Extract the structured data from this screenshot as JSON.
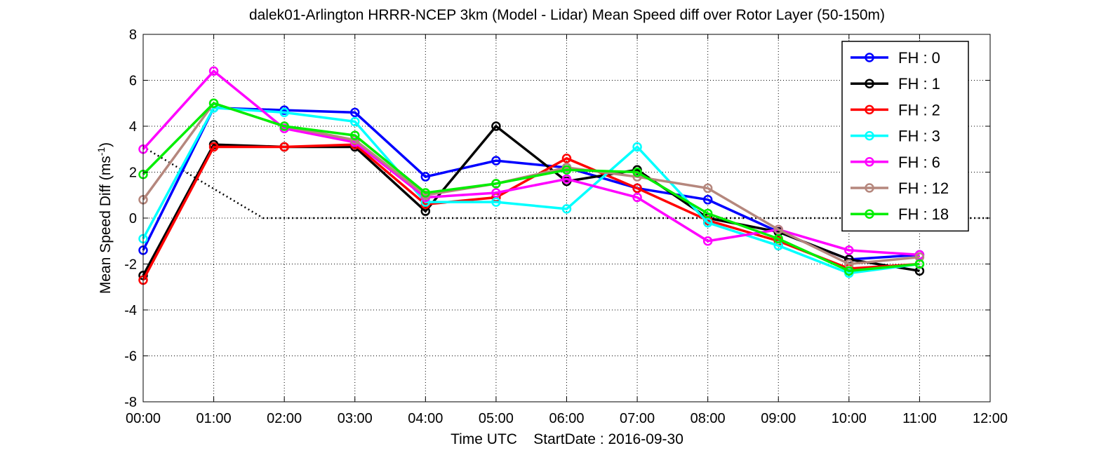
{
  "chart_data": {
    "type": "line",
    "title": "dalek01-Arlington HRRR-NCEP 3km (Model - Lidar) Mean Speed diff over Rotor Layer (50-150m)",
    "xlabel": "Time UTC    StartDate : 2016-09-30",
    "ylabel": "Mean Speed Diff (ms",
    "ylabel_sup": "-1",
    "ylabel_tail": ")",
    "xlim": [
      0,
      12
    ],
    "ylim": [
      -8,
      8
    ],
    "x_ticks": [
      0,
      1,
      2,
      3,
      4,
      5,
      6,
      7,
      8,
      9,
      10,
      11,
      12
    ],
    "x_tick_labels": [
      "00:00",
      "01:00",
      "02:00",
      "03:00",
      "04:00",
      "05:00",
      "06:00",
      "07:00",
      "08:00",
      "09:00",
      "10:00",
      "11:00",
      "12:00"
    ],
    "y_ticks": [
      -8,
      -6,
      -4,
      -2,
      0,
      2,
      4,
      6,
      8
    ],
    "y_tick_labels": [
      "-8",
      "-6",
      "-4",
      "-2",
      "0",
      "2",
      "4",
      "6",
      "8"
    ],
    "grid": true,
    "legend_position": "top-right",
    "reference_line": {
      "style": "dotted",
      "color": "#000000",
      "x": [
        0,
        1.7,
        12
      ],
      "y": [
        3.1,
        0,
        0
      ]
    },
    "series": [
      {
        "name": "FH : 0",
        "color": "#0000ff",
        "x": [
          0,
          1,
          2,
          3,
          4,
          5,
          6,
          7,
          8,
          9,
          10,
          11
        ],
        "y": [
          -1.4,
          4.8,
          4.7,
          4.6,
          1.8,
          2.5,
          2.2,
          1.3,
          0.8,
          -0.6,
          -1.8,
          -1.6
        ]
      },
      {
        "name": "FH : 1",
        "color": "#000000",
        "x": [
          0,
          1,
          2,
          3,
          4,
          5,
          6,
          7,
          8,
          9,
          10,
          11
        ],
        "y": [
          -2.5,
          3.2,
          3.1,
          3.1,
          0.3,
          4.0,
          1.6,
          2.1,
          0.0,
          -0.6,
          -1.8,
          -2.3
        ]
      },
      {
        "name": "FH : 2",
        "color": "#ff0000",
        "x": [
          0,
          1,
          2,
          3,
          4,
          5,
          6,
          7,
          8,
          9,
          10,
          11
        ],
        "y": [
          -2.7,
          3.1,
          3.1,
          3.2,
          0.6,
          0.9,
          2.6,
          1.3,
          -0.1,
          -1.0,
          -2.2,
          -2.0
        ]
      },
      {
        "name": "FH : 3",
        "color": "#00ffff",
        "x": [
          0,
          1,
          2,
          3,
          4,
          5,
          6,
          7,
          8,
          9,
          10,
          11
        ],
        "y": [
          -0.9,
          4.8,
          4.6,
          4.2,
          0.7,
          0.7,
          0.4,
          3.1,
          -0.2,
          -1.2,
          -2.4,
          -2.0
        ]
      },
      {
        "name": "FH : 6",
        "color": "#ff00ff",
        "x": [
          0,
          1,
          2,
          3,
          4,
          5,
          6,
          7,
          8,
          9,
          10,
          11
        ],
        "y": [
          3.0,
          6.4,
          3.9,
          3.3,
          0.9,
          1.1,
          1.7,
          0.9,
          -1.0,
          -0.5,
          -1.4,
          -1.6
        ]
      },
      {
        "name": "FH : 12",
        "color": "#b5877d",
        "x": [
          0,
          1,
          2,
          3,
          4,
          5,
          6,
          7,
          8,
          9,
          10,
          11
        ],
        "y": [
          0.8,
          5.0,
          4.0,
          3.4,
          1.0,
          1.5,
          2.2,
          1.8,
          1.3,
          -0.5,
          -2.0,
          -1.7
        ]
      },
      {
        "name": "FH : 18",
        "color": "#00ee00",
        "x": [
          0,
          1,
          2,
          3,
          4,
          5,
          6,
          7,
          8,
          9,
          10,
          11
        ],
        "y": [
          1.9,
          5.0,
          4.0,
          3.6,
          1.1,
          1.5,
          2.1,
          2.0,
          0.2,
          -0.9,
          -2.3,
          -2.0
        ]
      }
    ]
  }
}
